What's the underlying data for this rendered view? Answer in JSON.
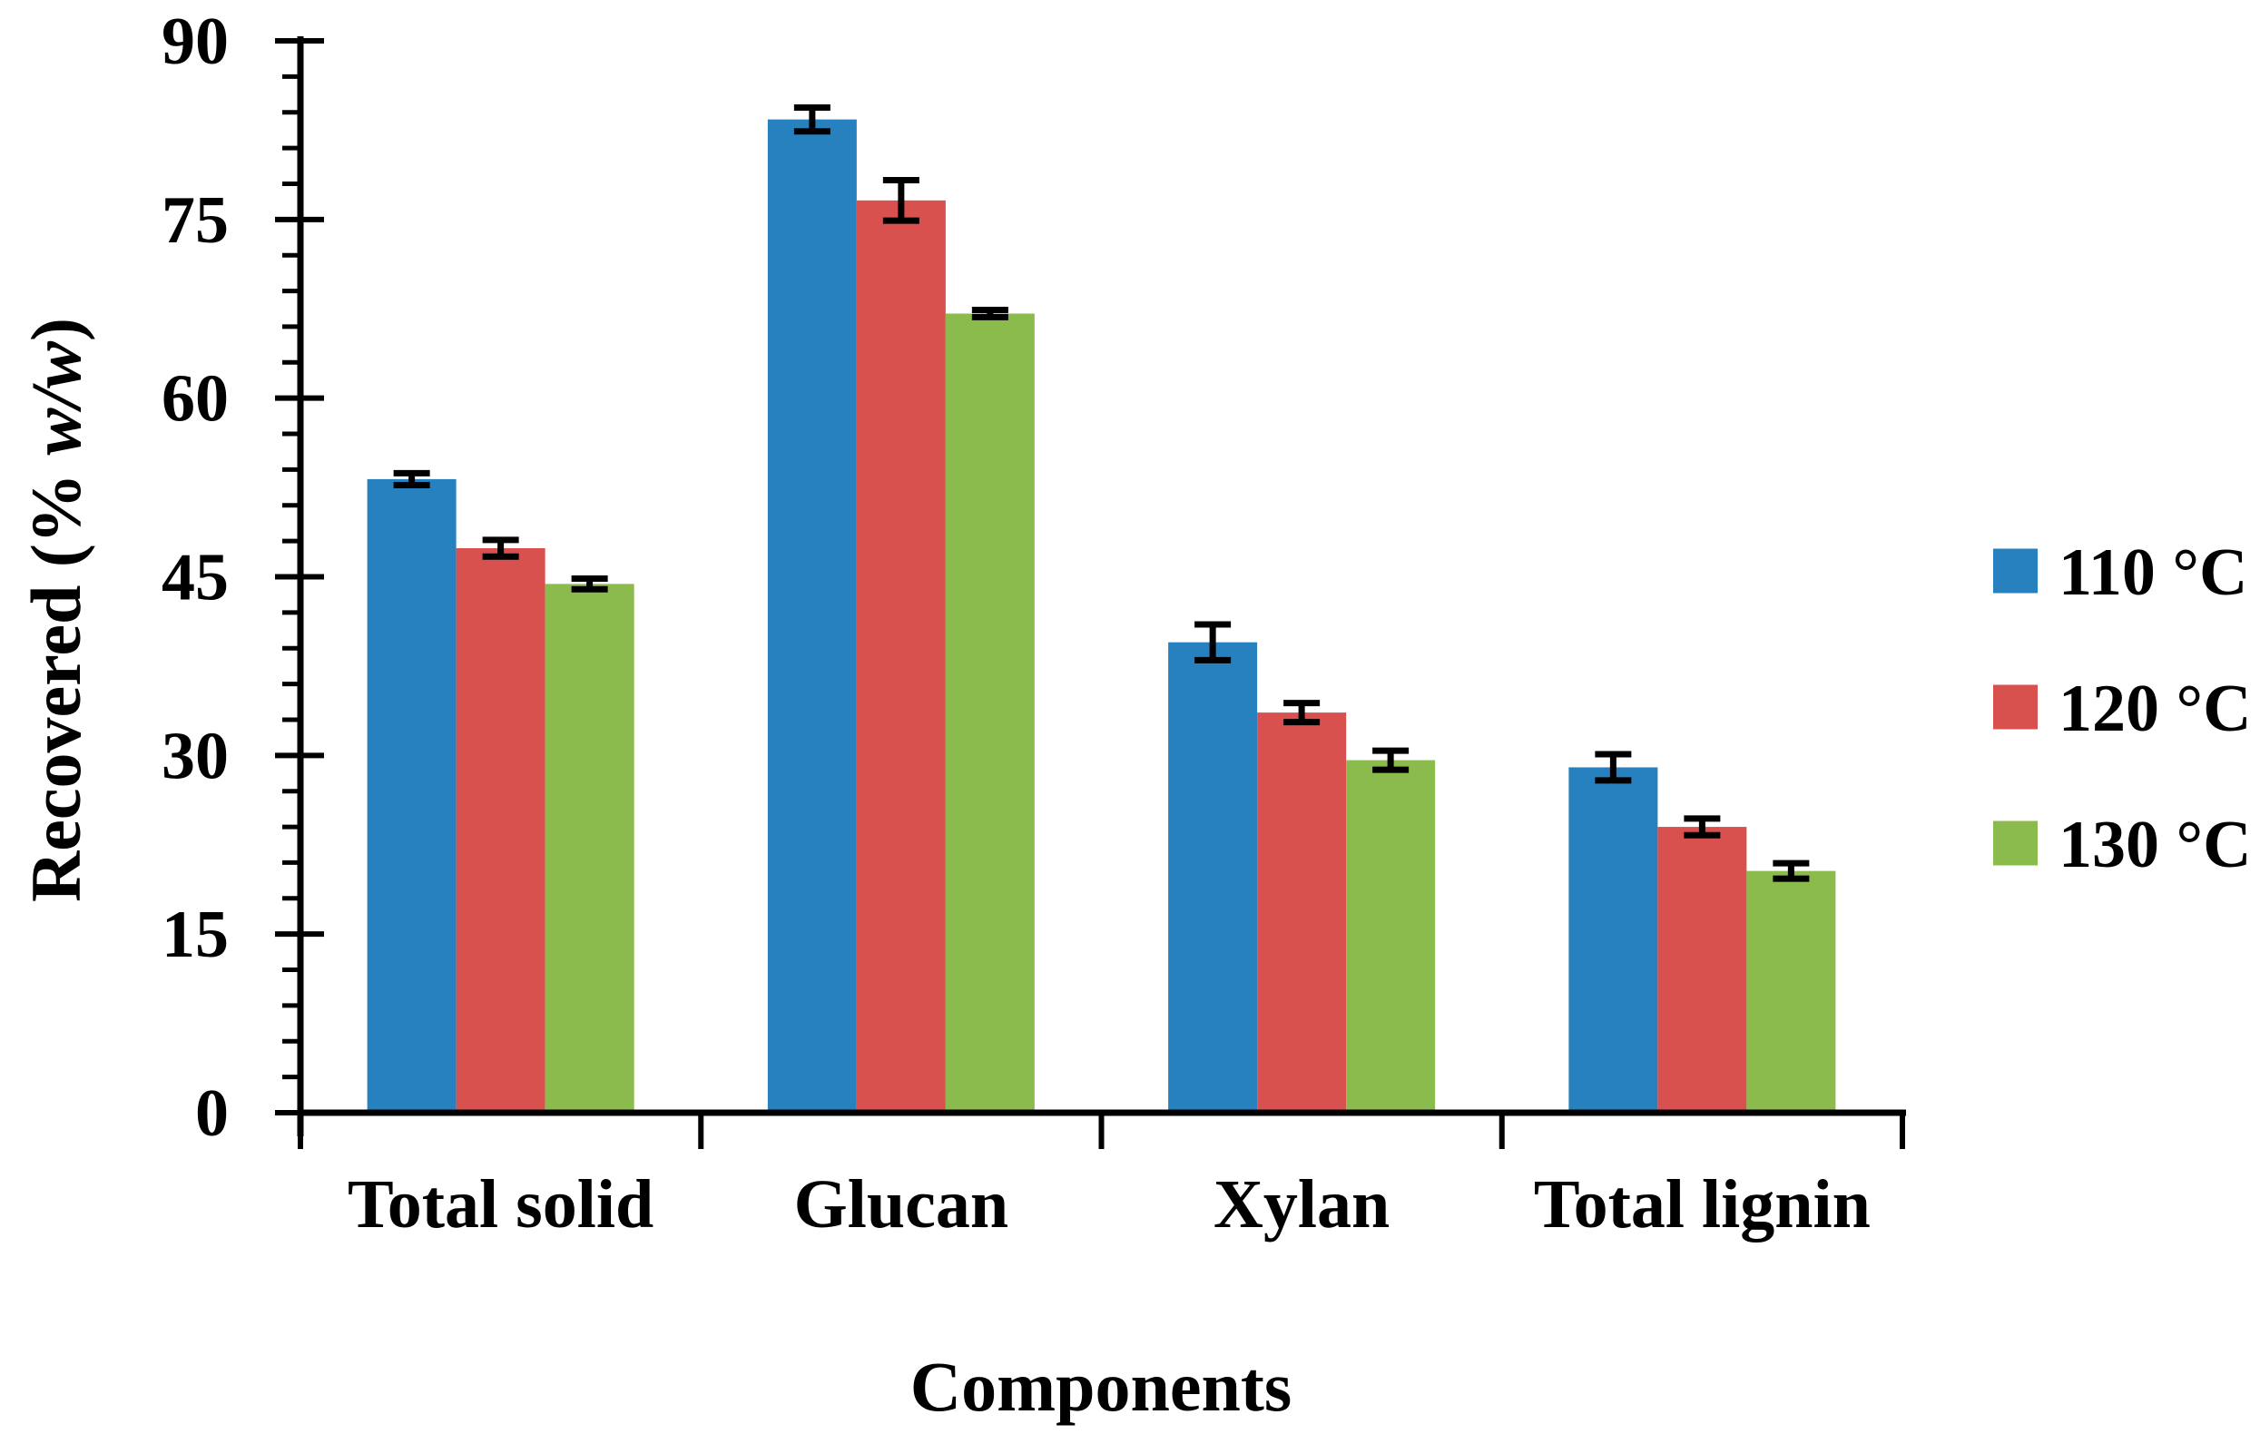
{
  "figure": {
    "background": "#ffffff",
    "text_color": "#000000"
  },
  "chart_data": {
    "type": "bar",
    "title": "",
    "xlabel": "Components",
    "ylabel": "Recovered (% w/w)",
    "ylabel_parts": {
      "prefix": "Recovered (% ",
      "italic": "w/w",
      "suffix": ")"
    },
    "categories": [
      "Total solid",
      "Glucan",
      "Xylan",
      "Total lignin"
    ],
    "series": [
      {
        "name": "110 °C",
        "color": "#2781BE",
        "values": [
          53.2,
          83.4,
          39.5,
          29.0
        ],
        "errors": [
          0.5,
          1.0,
          1.5,
          1.1
        ]
      },
      {
        "name": "120 °C",
        "color": "#D9514E",
        "values": [
          47.4,
          76.6,
          33.6,
          24.0
        ],
        "errors": [
          0.7,
          1.7,
          0.8,
          0.7
        ]
      },
      {
        "name": "130 °C",
        "color": "#8CBB4D",
        "values": [
          44.4,
          67.1,
          29.6,
          20.3
        ],
        "errors": [
          0.45,
          0.3,
          0.8,
          0.65
        ]
      }
    ],
    "ylim": [
      0,
      90
    ],
    "y_major_ticks": [
      0,
      15,
      30,
      45,
      60,
      75,
      90
    ],
    "y_minor_step": 3,
    "grid": false,
    "legend_position": "right",
    "axis_color": "#000000",
    "error_bar_color": "#000000"
  }
}
